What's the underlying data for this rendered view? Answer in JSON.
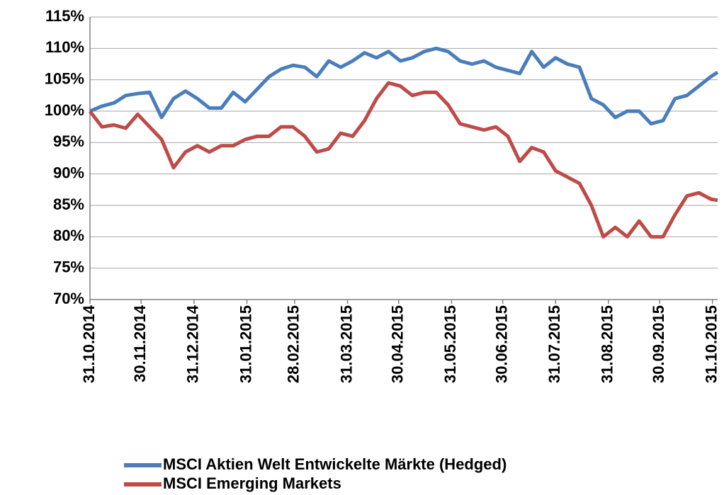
{
  "chart_data": {
    "type": "line",
    "x": [
      "2014-10-31",
      "2014-11-07",
      "2014-11-14",
      "2014-11-21",
      "2014-11-28",
      "2014-12-05",
      "2014-12-12",
      "2014-12-19",
      "2014-12-26",
      "2015-01-02",
      "2015-01-09",
      "2015-01-16",
      "2015-01-23",
      "2015-01-30",
      "2015-02-06",
      "2015-02-13",
      "2015-02-20",
      "2015-02-27",
      "2015-03-06",
      "2015-03-13",
      "2015-03-20",
      "2015-03-27",
      "2015-04-03",
      "2015-04-10",
      "2015-04-17",
      "2015-04-24",
      "2015-05-01",
      "2015-05-08",
      "2015-05-15",
      "2015-05-22",
      "2015-05-29",
      "2015-06-05",
      "2015-06-12",
      "2015-06-19",
      "2015-06-26",
      "2015-07-03",
      "2015-07-10",
      "2015-07-17",
      "2015-07-24",
      "2015-07-31",
      "2015-08-07",
      "2015-08-14",
      "2015-08-21",
      "2015-08-28",
      "2015-09-04",
      "2015-09-11",
      "2015-09-18",
      "2015-09-25",
      "2015-10-02",
      "2015-10-09",
      "2015-10-16",
      "2015-10-23",
      "2015-10-30",
      "2015-11-03"
    ],
    "series": [
      {
        "name": "MSCI Aktien Welt Entwickelte Märkte (Hedged)",
        "color": "#4a7ebb",
        "values": [
          100,
          100.8,
          101.3,
          102.5,
          102.8,
          103,
          99,
          102,
          103.2,
          102,
          100.5,
          100.5,
          103,
          101.5,
          103.5,
          105.5,
          106.7,
          107.3,
          107,
          105.5,
          108,
          107,
          108,
          109.3,
          108.5,
          109.5,
          108,
          108.5,
          109.5,
          110,
          109.5,
          108,
          107.5,
          108,
          107,
          106.5,
          106,
          109.5,
          107,
          108.5,
          107.5,
          107,
          102,
          101,
          99,
          100,
          100,
          98,
          98.5,
          102,
          102.5,
          104,
          105.5,
          106.2
        ]
      },
      {
        "name": "MSCI Emerging Markets",
        "color": "#be4b48",
        "values": [
          100,
          97.5,
          97.8,
          97.3,
          99.5,
          97.5,
          95.5,
          91,
          93.5,
          94.5,
          93.5,
          94.5,
          94.5,
          95.5,
          96,
          96,
          97.5,
          97.5,
          96,
          93.5,
          94,
          96.5,
          96,
          98.5,
          102,
          104.5,
          104,
          102.5,
          103,
          103,
          101,
          98,
          97.5,
          97,
          97.5,
          96,
          92,
          94.2,
          93.5,
          90.5,
          89.5,
          88.5,
          85,
          80,
          81.5,
          80,
          82.5,
          80,
          80,
          83.5,
          86.5,
          87,
          86,
          85.8
        ]
      }
    ],
    "xlim": [
      "2014-10-31",
      "2015-11-03"
    ],
    "xticks": [
      {
        "value": "2014-10-31",
        "label": "31.10.2014"
      },
      {
        "value": "2014-11-30",
        "label": "30.11.2014"
      },
      {
        "value": "2014-12-31",
        "label": "31.12.2014"
      },
      {
        "value": "2015-01-31",
        "label": "31.01.2015"
      },
      {
        "value": "2015-02-28",
        "label": "28.02.2015"
      },
      {
        "value": "2015-03-31",
        "label": "31.03.2015"
      },
      {
        "value": "2015-04-30",
        "label": "30.04.2015"
      },
      {
        "value": "2015-05-31",
        "label": "31.05.2015"
      },
      {
        "value": "2015-06-30",
        "label": "30.06.2015"
      },
      {
        "value": "2015-07-31",
        "label": "31.07.2015"
      },
      {
        "value": "2015-08-31",
        "label": "31.08.2015"
      },
      {
        "value": "2015-09-30",
        "label": "30.09.2015"
      },
      {
        "value": "2015-10-31",
        "label": "31.10.2015"
      }
    ],
    "ylim": [
      70,
      115
    ],
    "yticks": [
      {
        "value": 70,
        "label": "70%"
      },
      {
        "value": 75,
        "label": "75%"
      },
      {
        "value": 80,
        "label": "80%"
      },
      {
        "value": 85,
        "label": "85%"
      },
      {
        "value": 90,
        "label": "90%"
      },
      {
        "value": 95,
        "label": "95%"
      },
      {
        "value": 100,
        "label": "100%"
      },
      {
        "value": 105,
        "label": "105%"
      },
      {
        "value": 110,
        "label": "110%"
      },
      {
        "value": 115,
        "label": "115%"
      }
    ],
    "grid": true,
    "legend": "bottom"
  }
}
